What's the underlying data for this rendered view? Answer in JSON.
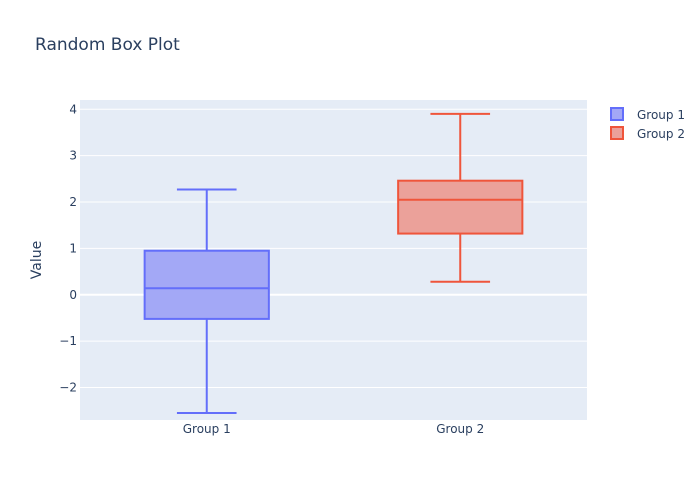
{
  "chart_data": {
    "type": "box",
    "title": "Random Box Plot",
    "xlabel": "",
    "ylabel": "Value",
    "categories": [
      "Group 1",
      "Group 2"
    ],
    "ylim": [
      -2.7,
      4.2
    ],
    "yticks": [
      {
        "value": 4,
        "label": "4"
      },
      {
        "value": 3,
        "label": "3"
      },
      {
        "value": 2,
        "label": "2"
      },
      {
        "value": 1,
        "label": "1"
      },
      {
        "value": 0,
        "label": "0"
      },
      {
        "value": -1,
        "label": "−1"
      },
      {
        "value": -2,
        "label": "−2"
      }
    ],
    "grid": true,
    "legend_position": "top-right",
    "series": [
      {
        "name": "Group 1",
        "category": "Group 1",
        "min": -2.55,
        "q1": -0.52,
        "median": 0.14,
        "q3": 0.95,
        "max": 2.27,
        "stroke": "#636efa",
        "fill": "#a3a8f6"
      },
      {
        "name": "Group 2",
        "category": "Group 2",
        "min": 0.28,
        "q1": 1.32,
        "median": 2.05,
        "q3": 2.46,
        "max": 3.9,
        "stroke": "#ef553b",
        "fill": "#eba19a"
      }
    ],
    "colors": {
      "plot_background": "#e5ecf6",
      "grid": "#ffffff",
      "text": "#2a3f5f"
    }
  }
}
